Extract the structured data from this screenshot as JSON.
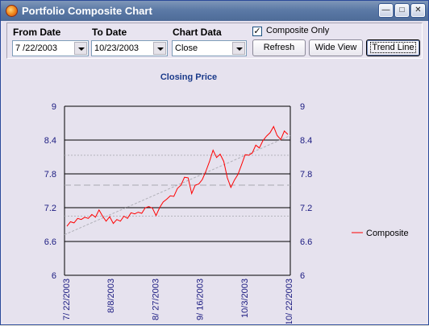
{
  "window": {
    "title": "Portfolio Composite Chart"
  },
  "toolbar": {
    "from_date_label": "From Date",
    "from_date_value": "7 /22/2003",
    "to_date_label": "To Date",
    "to_date_value": "10/23/2003",
    "chart_data_label": "Chart Data",
    "chart_data_value": "Close",
    "composite_only_label": "Composite Only",
    "composite_only_checked": true,
    "refresh_label": "Refresh",
    "wide_view_label": "Wide View",
    "trend_line_label": "Trend Line"
  },
  "colors": {
    "series": "#ff0000",
    "axis_text": "#1a1a80",
    "title": "#1a3a8a"
  },
  "chart_data": {
    "type": "line",
    "title": "Closing Price",
    "xlabel": "",
    "ylabel": "",
    "ylim": [
      6,
      9
    ],
    "y_ticks": [
      "9",
      "8.4",
      "7.8",
      "7.2",
      "6.6",
      "6"
    ],
    "x_tick_labels": [
      "7/ 22/2003",
      "8/8/2003",
      "8/ 27/2003",
      "9/ 16/2003",
      "10/3/2003",
      "10/ 22/2003"
    ],
    "legend": {
      "position": "right"
    },
    "series": [
      {
        "name": "Composite",
        "values": [
          6.87,
          6.95,
          6.93,
          7.01,
          6.99,
          7.03,
          7.01,
          7.08,
          7.03,
          7.16,
          7.05,
          6.96,
          7.04,
          6.92,
          6.99,
          6.96,
          7.05,
          7.01,
          7.11,
          7.09,
          7.12,
          7.1,
          7.2,
          7.22,
          7.19,
          7.06,
          7.2,
          7.3,
          7.35,
          7.41,
          7.4,
          7.54,
          7.6,
          7.74,
          7.73,
          7.45,
          7.6,
          7.62,
          7.7,
          7.85,
          8.02,
          8.22,
          8.09,
          8.15,
          8.02,
          7.73,
          7.56,
          7.69,
          7.79,
          7.96,
          8.14,
          8.13,
          8.17,
          8.31,
          8.26,
          8.39,
          8.47,
          8.53,
          8.64,
          8.48,
          8.41,
          8.56,
          8.5
        ]
      }
    ],
    "overlays": [
      {
        "name": "trend",
        "start": 6.72,
        "end": 8.48
      },
      {
        "name": "mean",
        "value": 7.6
      },
      {
        "name": "upper band",
        "value": 8.13
      },
      {
        "name": "lower band",
        "value": 7.05
      }
    ]
  }
}
